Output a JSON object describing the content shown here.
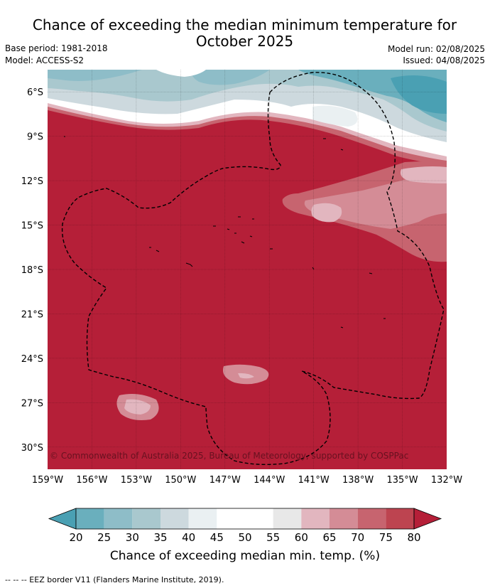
{
  "title_line1": "Chance of exceeding the median minimum temperature for",
  "title_line2": "October 2025",
  "base_period": "Base period: 1981-2018",
  "model": "Model: ACCESS-S2",
  "model_run": "Model run: 02/08/2025",
  "issued": "Issued: 04/08/2025",
  "copyright": "© Commonwealth of Australia 2025, Bureau of Meteorology, supported by COSPPac",
  "footnote": "--  --  -- EEZ border V11 (Flanders Marine Institute, 2019).",
  "map": {
    "lon_labels": [
      "159°W",
      "156°W",
      "153°W",
      "150°W",
      "147°W",
      "144°W",
      "141°W",
      "138°W",
      "135°W",
      "132°W"
    ],
    "lat_labels": [
      "6°S",
      "9°S",
      "12°S",
      "15°S",
      "18°S",
      "21°S",
      "24°S",
      "27°S",
      "30°S"
    ],
    "lon_values": [
      -159,
      -156,
      -153,
      -150,
      -147,
      -144,
      -141,
      -138,
      -135,
      -132
    ],
    "lat_values": [
      -6,
      -9,
      -12,
      -15,
      -18,
      -21,
      -24,
      -27,
      -30
    ],
    "lon_range": [
      -159,
      -132
    ],
    "lat_range": [
      -31.5,
      -4.5
    ],
    "grid": true,
    "dominant_category": "above 80%"
  },
  "colorbar": {
    "title": "Chance of exceeding median min. temp. (%)",
    "ticks": [
      "20",
      "25",
      "30",
      "35",
      "40",
      "45",
      "50",
      "55",
      "60",
      "65",
      "70",
      "75",
      "80"
    ],
    "bins": [
      {
        "color": "#4aa0b3"
      },
      {
        "color": "#6aafbd"
      },
      {
        "color": "#8ebdc8"
      },
      {
        "color": "#a9c8ce"
      },
      {
        "color": "#cdd9de"
      },
      {
        "color": "#eaf0f2"
      },
      {
        "color": "#ffffff"
      },
      {
        "color": "#ffffff"
      },
      {
        "color": "#e8e8e8"
      },
      {
        "color": "#e2b6bf"
      },
      {
        "color": "#d48c96"
      },
      {
        "color": "#c7646f"
      },
      {
        "color": "#bd4450"
      },
      {
        "color": "#b51f38"
      }
    ]
  }
}
